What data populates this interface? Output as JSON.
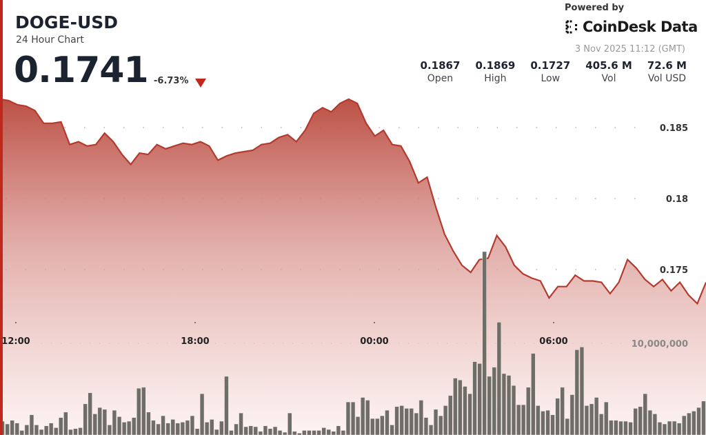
{
  "header": {
    "symbol": "DOGE-USD",
    "subtitle": "24 Hour Chart",
    "price": "0.1741",
    "change": "-6.73%",
    "change_direction": "down",
    "powered_by": "Powered by",
    "brand": "CoinDesk Data",
    "timestamp": "3 Nov 2025 11:12 (GMT)"
  },
  "stats": [
    {
      "value": "0.1867",
      "label": "Open"
    },
    {
      "value": "0.1869",
      "label": "High"
    },
    {
      "value": "0.1727",
      "label": "Low"
    },
    {
      "value": "405.6 M",
      "label": "Vol"
    },
    {
      "value": "72.6 M",
      "label": "Vol USD"
    }
  ],
  "colors": {
    "accent": "#c0281e",
    "line": "#b33a2e",
    "volume": "#6e6e66",
    "text": "#1b2330"
  },
  "chart_data": {
    "type": "area",
    "price_series": [
      0.187,
      0.1869,
      0.1866,
      0.1865,
      0.1862,
      0.1853,
      0.1853,
      0.1854,
      0.1838,
      0.184,
      0.1837,
      0.1838,
      0.1846,
      0.184,
      0.1831,
      0.1824,
      0.1832,
      0.1831,
      0.1838,
      0.1835,
      0.1837,
      0.1839,
      0.1838,
      0.184,
      0.1837,
      0.1827,
      0.183,
      0.1832,
      0.1833,
      0.1834,
      0.1838,
      0.1839,
      0.1843,
      0.1845,
      0.184,
      0.1848,
      0.186,
      0.1864,
      0.1861,
      0.1867,
      0.187,
      0.1867,
      0.1853,
      0.1844,
      0.1848,
      0.1838,
      0.1837,
      0.1826,
      0.1811,
      0.1815,
      0.1794,
      0.1775,
      0.1763,
      0.1753,
      0.1748,
      0.1757,
      0.1758,
      0.1774,
      0.1766,
      0.1753,
      0.1747,
      0.1744,
      0.1742,
      0.173,
      0.1738,
      0.1738,
      0.1746,
      0.1742,
      0.1742,
      0.1741,
      0.1733,
      0.1741,
      0.1757,
      0.1751,
      0.1743,
      0.1738,
      0.1743,
      0.1735,
      0.1741,
      0.1732,
      0.1726,
      0.1741
    ],
    "volume_series_millions": [
      1.5,
      1.2,
      1.6,
      1.3,
      0.5,
      1.1,
      2.2,
      1.1,
      0.6,
      1.0,
      1.3,
      0.8,
      1.9,
      2.5,
      0.6,
      0.7,
      0.8,
      3.4,
      4.6,
      2.3,
      3.0,
      2.8,
      1.1,
      2.7,
      2.0,
      1.4,
      1.5,
      1.9,
      5.1,
      5.2,
      2.5,
      1.6,
      1.2,
      2.1,
      1.3,
      1.7,
      1.3,
      1.4,
      1.6,
      2.1,
      0.7,
      4.5,
      1.4,
      1.7,
      0.6,
      1.5,
      6.4,
      0.5,
      1.2,
      2.4,
      0.9,
      1.0,
      0.9,
      0.4,
      1.0,
      0.7,
      0.9,
      0.5,
      0.3,
      2.4,
      0.4,
      0.2,
      0.5,
      0.5,
      0.5,
      0.5,
      0.8,
      0.6,
      0.4,
      1.0,
      0.5,
      3.6,
      3.6,
      2.0,
      4.1,
      3.8,
      1.8,
      1.8,
      2.1,
      2.7,
      1.1,
      3.1,
      3.2,
      2.9,
      2.9,
      2.4,
      3.8,
      1.9,
      1.1,
      2.8,
      2.1,
      3.2,
      4.3,
      6.2,
      6.0,
      5.3,
      4.5,
      8.0,
      7.8,
      20.0,
      6.4,
      7.4,
      12.3,
      6.7,
      6.5,
      5.4,
      3.3,
      3.3,
      5.2,
      8.9,
      3.2,
      2.6,
      2.7,
      2.2,
      4.0,
      5.2,
      1.8,
      4.4,
      9.3,
      9.6,
      3.2,
      3.4,
      4.1,
      2.3,
      3.6,
      1.6,
      1.6,
      1.5,
      1.5,
      1.4,
      2.9,
      3.1,
      4.5,
      2.7,
      2.3,
      1.4,
      1.2,
      1.5,
      1.5,
      1.3,
      2.1,
      2.4,
      2.6,
      3.0,
      3.7
    ],
    "price_ticks": [
      0.185,
      0.18,
      0.175
    ],
    "price_tick_labels": [
      "0.185",
      "0.18",
      "0.175"
    ],
    "x_ticks": [
      "12:00",
      "18:00",
      "00:00",
      "06:00"
    ],
    "volume_tick": 10000000,
    "volume_tick_label": "10,000,000",
    "grid": true
  }
}
